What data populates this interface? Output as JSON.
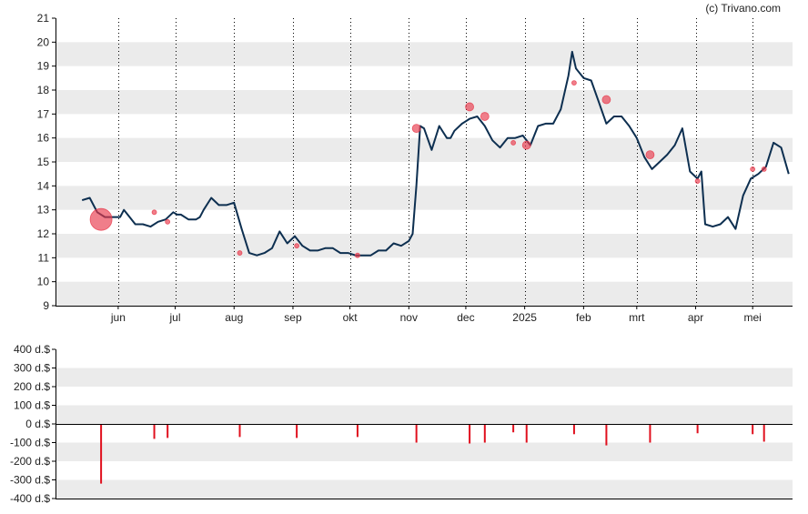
{
  "copyright": "(c) Trivano.com",
  "colors": {
    "price_line": "#0d2f50",
    "bubble": "#e8394b",
    "volume_bar": "#e0101e",
    "band": "#ebebeb",
    "axis": "#000000"
  },
  "chart_data": [
    {
      "type": "line",
      "name": "price",
      "ylim": [
        9,
        21
      ],
      "y_ticks": [
        "9",
        "10",
        "11",
        "12",
        "13",
        "14",
        "15",
        "16",
        "17",
        "18",
        "19",
        "20",
        "21"
      ],
      "x_ticks": [
        {
          "label": "jun",
          "day": 19
        },
        {
          "label": "jul",
          "day": 49
        },
        {
          "label": "aug",
          "day": 80
        },
        {
          "label": "sep",
          "day": 111
        },
        {
          "label": "okt",
          "day": 141
        },
        {
          "label": "nov",
          "day": 172
        },
        {
          "label": "dec",
          "day": 202
        },
        {
          "label": "2025",
          "day": 233
        },
        {
          "label": "feb",
          "day": 264
        },
        {
          "label": "mrt",
          "day": 292
        },
        {
          "label": "apr",
          "day": 323
        },
        {
          "label": "mei",
          "day": 353
        }
      ],
      "x_range": [
        -14,
        374
      ],
      "x": [
        0,
        4,
        8,
        12,
        16,
        20,
        22,
        24,
        28,
        32,
        36,
        40,
        44,
        48,
        50,
        52,
        56,
        60,
        62,
        64,
        68,
        72,
        76,
        80,
        84,
        88,
        92,
        96,
        100,
        104,
        108,
        112,
        116,
        120,
        124,
        128,
        132,
        136,
        140,
        144,
        148,
        152,
        156,
        160,
        164,
        168,
        172,
        174,
        176,
        178,
        180,
        184,
        188,
        192,
        194,
        196,
        200,
        204,
        208,
        212,
        216,
        220,
        224,
        228,
        232,
        236,
        240,
        244,
        248,
        252,
        256,
        258,
        260,
        264,
        268,
        272,
        276,
        280,
        284,
        288,
        292,
        296,
        300,
        304,
        308,
        312,
        316,
        320,
        324,
        326,
        328,
        332,
        336,
        340,
        344,
        348,
        352,
        356,
        360,
        364,
        368,
        372
      ],
      "values": [
        13.4,
        13.5,
        12.9,
        12.7,
        12.7,
        12.7,
        13.0,
        12.8,
        12.4,
        12.4,
        12.3,
        12.5,
        12.6,
        12.9,
        12.8,
        12.8,
        12.6,
        12.6,
        12.7,
        13.0,
        13.5,
        13.2,
        13.2,
        13.3,
        12.2,
        11.2,
        11.1,
        11.2,
        11.4,
        12.1,
        11.6,
        11.9,
        11.5,
        11.3,
        11.3,
        11.4,
        11.4,
        11.2,
        11.2,
        11.1,
        11.1,
        11.1,
        11.3,
        11.3,
        11.6,
        11.5,
        11.7,
        12.0,
        14.0,
        16.5,
        16.4,
        15.5,
        16.5,
        16.0,
        16.0,
        16.3,
        16.6,
        16.8,
        16.9,
        16.5,
        15.9,
        15.6,
        16.0,
        16.0,
        16.1,
        15.7,
        16.5,
        16.6,
        16.6,
        17.2,
        18.6,
        19.6,
        18.9,
        18.5,
        18.4,
        17.5,
        16.6,
        16.9,
        16.9,
        16.5,
        16.0,
        15.2,
        14.7,
        15.0,
        15.3,
        15.7,
        16.4,
        14.6,
        14.3,
        14.6,
        12.4,
        12.3,
        12.4,
        12.7,
        12.2,
        13.6,
        14.3,
        14.5,
        14.8,
        15.8,
        15.6,
        14.5
      ],
      "bubbles": [
        {
          "day": 10,
          "value": 12.6,
          "size": "large"
        },
        {
          "day": 38,
          "value": 12.9,
          "size": "small"
        },
        {
          "day": 45,
          "value": 12.5,
          "size": "small"
        },
        {
          "day": 83,
          "value": 11.2,
          "size": "small"
        },
        {
          "day": 113,
          "value": 11.5,
          "size": "small"
        },
        {
          "day": 145,
          "value": 11.1,
          "size": "small"
        },
        {
          "day": 176,
          "value": 16.4,
          "size": "medium"
        },
        {
          "day": 204,
          "value": 17.3,
          "size": "medium"
        },
        {
          "day": 212,
          "value": 16.9,
          "size": "medium"
        },
        {
          "day": 227,
          "value": 15.8,
          "size": "small"
        },
        {
          "day": 234,
          "value": 15.7,
          "size": "medium"
        },
        {
          "day": 259,
          "value": 18.3,
          "size": "small"
        },
        {
          "day": 276,
          "value": 17.6,
          "size": "medium"
        },
        {
          "day": 299,
          "value": 15.3,
          "size": "medium"
        },
        {
          "day": 324,
          "value": 14.2,
          "size": "small"
        },
        {
          "day": 353,
          "value": 14.7,
          "size": "small"
        },
        {
          "day": 359,
          "value": 14.7,
          "size": "small"
        }
      ],
      "grid": "alternating horizontal bands, dotted vertical month lines"
    },
    {
      "type": "bar",
      "name": "volume",
      "ylim": [
        -400,
        400
      ],
      "y_ticks": [
        "400 d.$",
        "300 d.$",
        "200 d.$",
        "100 d.$",
        "0 d.$",
        "-100 d.$",
        "-200 d.$",
        "-300 d.$",
        "-400 d.$"
      ],
      "x": [
        10,
        38,
        45,
        83,
        113,
        145,
        176,
        204,
        212,
        227,
        234,
        259,
        276,
        299,
        324,
        353,
        359
      ],
      "values": [
        -320,
        -80,
        -75,
        -70,
        -75,
        -70,
        -100,
        -105,
        -100,
        -45,
        -100,
        -55,
        -115,
        -100,
        -50,
        -55,
        -95
      ]
    }
  ]
}
